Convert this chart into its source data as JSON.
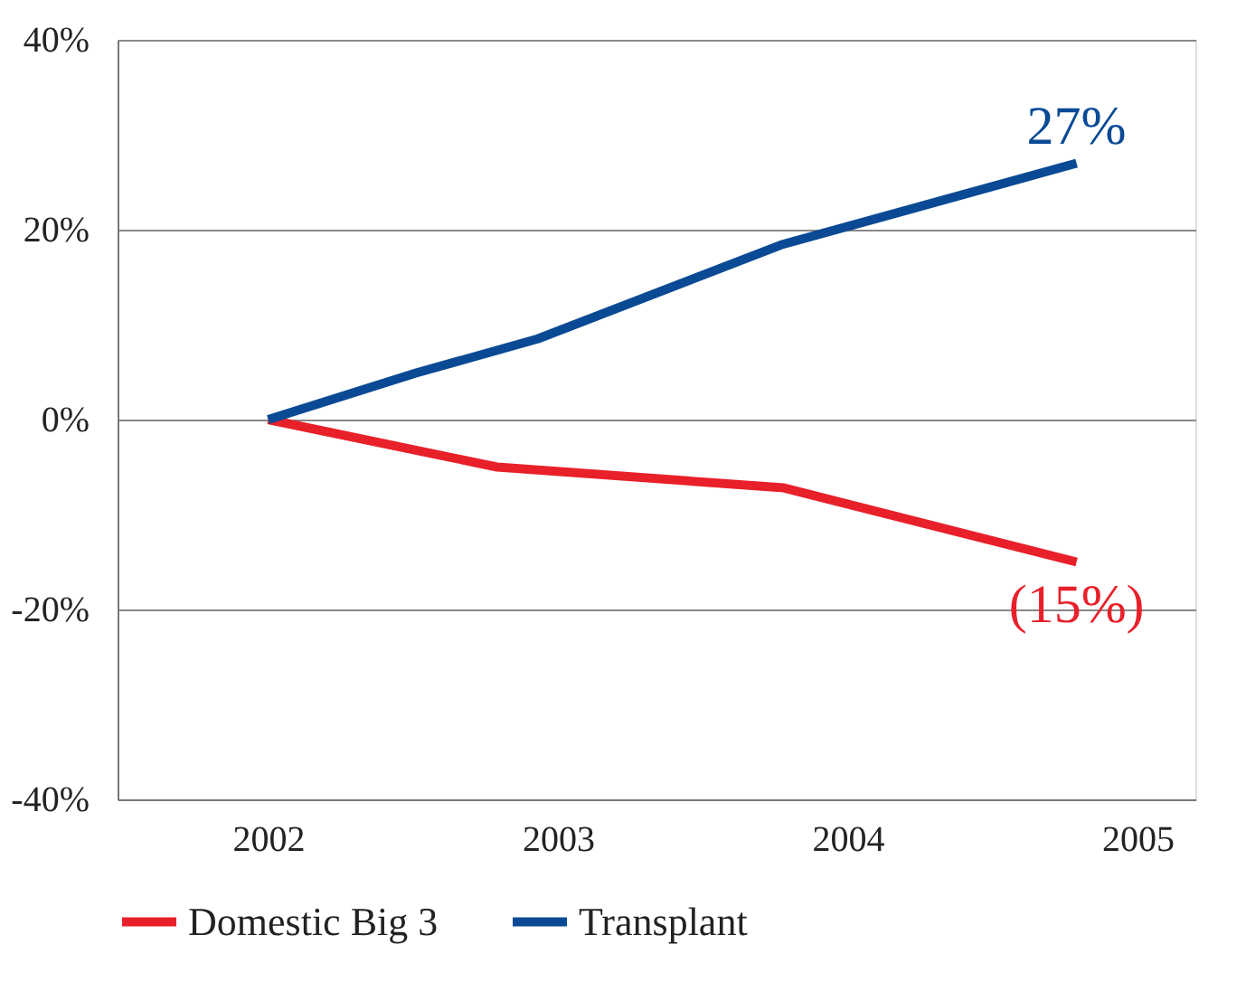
{
  "chart_data": {
    "type": "line",
    "xlim": [
      2001.48,
      2005.2
    ],
    "xticks": [
      2002,
      2003,
      2004,
      2005
    ],
    "ylim": [
      -40,
      40
    ],
    "yticks": [
      {
        "value": -40,
        "label": "-40%"
      },
      {
        "value": -20,
        "label": "-20%"
      },
      {
        "value": 0,
        "label": "0%"
      },
      {
        "value": 20,
        "label": "20%"
      },
      {
        "value": 40,
        "label": "40%"
      }
    ],
    "series": [
      {
        "name": "Domestic Big 3",
        "color": "#e8202a",
        "x": [
          2002,
          2002.79,
          2003.78,
          2004.79
        ],
        "values": [
          0,
          -5.0,
          -7.2,
          -15
        ]
      },
      {
        "name": "Transplant",
        "color": "#0a4a94",
        "x": [
          2002,
          2002.51,
          2002.93,
          2003.77,
          2004.79
        ],
        "values": [
          0,
          4.9,
          8.5,
          18.4,
          27
        ]
      }
    ],
    "annotations": [
      {
        "text": "27%",
        "x": 2004.79,
        "y": 27
      },
      {
        "text": "(15%)",
        "x": 2004.79,
        "y": -15
      }
    ],
    "grid": "y",
    "legend": "bottom",
    "marker": "none",
    "line_style": "solid"
  }
}
